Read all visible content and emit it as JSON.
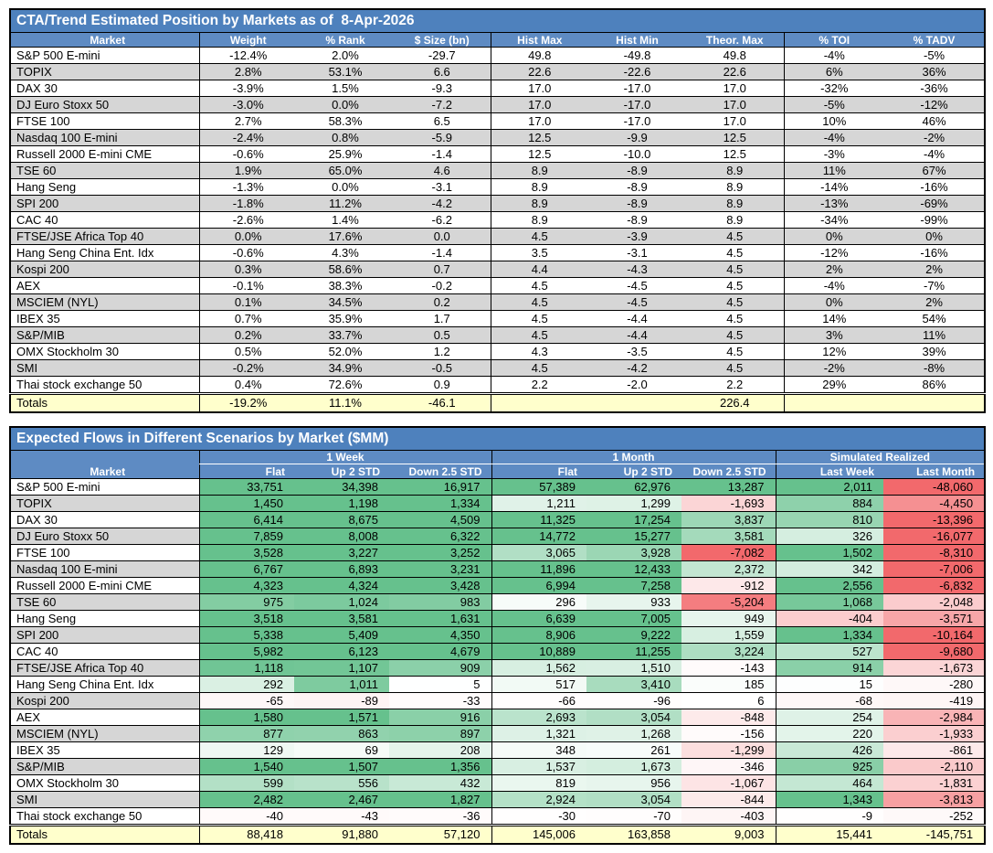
{
  "colors": {
    "title_bar": "#4E81BD",
    "header_bar": "#5E8BC3",
    "stripe_gray": "#D6D6D6",
    "totals_yellow": "#FFFFCC",
    "grid_black": "#000000",
    "heat_positive": "#66C18D",
    "heat_negative": "#F2696C"
  },
  "table1": {
    "title": "CTA/Trend Estimated Position by Markets as of  8-Apr-2026",
    "columns": [
      "Market",
      "Weight",
      "% Rank",
      "$ Size (bn)",
      "Hist Max",
      "Hist Min",
      "Theor. Max",
      "% TOI",
      "% TADV"
    ],
    "rows": [
      [
        "S&P 500 E-mini",
        "-12.4%",
        "2.0%",
        "-29.7",
        "49.8",
        "-49.8",
        "49.8",
        "-4%",
        "-5%"
      ],
      [
        "TOPIX",
        "2.8%",
        "53.1%",
        "6.6",
        "22.6",
        "-22.6",
        "22.6",
        "6%",
        "36%"
      ],
      [
        "DAX 30",
        "-3.9%",
        "1.5%",
        "-9.3",
        "17.0",
        "-17.0",
        "17.0",
        "-32%",
        "-36%"
      ],
      [
        "DJ Euro Stoxx 50",
        "-3.0%",
        "0.0%",
        "-7.2",
        "17.0",
        "-17.0",
        "17.0",
        "-5%",
        "-12%"
      ],
      [
        "FTSE 100",
        "2.7%",
        "58.3%",
        "6.5",
        "17.0",
        "-17.0",
        "17.0",
        "10%",
        "46%"
      ],
      [
        "Nasdaq 100 E-mini",
        "-2.4%",
        "0.8%",
        "-5.9",
        "12.5",
        "-9.9",
        "12.5",
        "-4%",
        "-2%"
      ],
      [
        "Russell 2000 E-mini CME",
        "-0.6%",
        "25.9%",
        "-1.4",
        "12.5",
        "-10.0",
        "12.5",
        "-3%",
        "-4%"
      ],
      [
        "TSE 60",
        "1.9%",
        "65.0%",
        "4.6",
        "8.9",
        "-8.9",
        "8.9",
        "11%",
        "67%"
      ],
      [
        "Hang Seng",
        "-1.3%",
        "0.0%",
        "-3.1",
        "8.9",
        "-8.9",
        "8.9",
        "-14%",
        "-16%"
      ],
      [
        "SPI 200",
        "-1.8%",
        "11.2%",
        "-4.2",
        "8.9",
        "-8.9",
        "8.9",
        "-13%",
        "-69%"
      ],
      [
        "CAC 40",
        "-2.6%",
        "1.4%",
        "-6.2",
        "8.9",
        "-8.9",
        "8.9",
        "-34%",
        "-99%"
      ],
      [
        "FTSE/JSE Africa Top 40",
        "0.0%",
        "17.6%",
        "0.0",
        "4.5",
        "-3.9",
        "4.5",
        "0%",
        "0%"
      ],
      [
        "Hang Seng China Ent. Idx",
        "-0.6%",
        "4.3%",
        "-1.4",
        "3.5",
        "-3.1",
        "4.5",
        "-12%",
        "-16%"
      ],
      [
        "Kospi 200",
        "0.3%",
        "58.6%",
        "0.7",
        "4.4",
        "-4.3",
        "4.5",
        "2%",
        "2%"
      ],
      [
        "AEX",
        "-0.1%",
        "38.3%",
        "-0.2",
        "4.5",
        "-4.5",
        "4.5",
        "-4%",
        "-7%"
      ],
      [
        "MSCIEM (NYL)",
        "0.1%",
        "34.5%",
        "0.2",
        "4.5",
        "-4.5",
        "4.5",
        "0%",
        "2%"
      ],
      [
        "IBEX 35",
        "0.7%",
        "35.9%",
        "1.7",
        "4.5",
        "-4.4",
        "4.5",
        "14%",
        "54%"
      ],
      [
        "S&P/MIB",
        "0.2%",
        "33.7%",
        "0.5",
        "4.5",
        "-4.4",
        "4.5",
        "3%",
        "11%"
      ],
      [
        "OMX Stockholm 30",
        "0.5%",
        "52.0%",
        "1.2",
        "4.3",
        "-3.5",
        "4.5",
        "12%",
        "39%"
      ],
      [
        "SMI",
        "-0.2%",
        "34.9%",
        "-0.5",
        "4.5",
        "-4.2",
        "4.5",
        "-2%",
        "-8%"
      ],
      [
        "Thai stock exchange 50",
        "0.4%",
        "72.6%",
        "0.9",
        "2.2",
        "-2.0",
        "2.2",
        "29%",
        "86%"
      ]
    ],
    "totals": [
      "Totals",
      "-19.2%",
      "11.1%",
      "-46.1",
      "",
      "",
      "226.4",
      "",
      ""
    ]
  },
  "table2": {
    "title": "Expected Flows in Different Scenarios by Market ($MM)",
    "groups": [
      {
        "label": "1 Week",
        "span": 3
      },
      {
        "label": "1 Month",
        "span": 3
      },
      {
        "label": "Simulated Realized",
        "span": 2
      }
    ],
    "columns": [
      "Market",
      "Flat",
      "Up 2 STD",
      "Down 2.5 STD",
      "Flat",
      "Up 2 STD",
      "Down 2.5 STD",
      "Last Week",
      "Last Month"
    ],
    "rows": [
      [
        "S&P 500 E-mini",
        33751,
        34398,
        16917,
        57389,
        62976,
        13287,
        2011,
        -48060
      ],
      [
        "TOPIX",
        1450,
        1198,
        1334,
        1211,
        1299,
        -1693,
        884,
        -4450
      ],
      [
        "DAX 30",
        6414,
        8675,
        4509,
        11325,
        17254,
        3837,
        810,
        -13396
      ],
      [
        "DJ Euro Stoxx 50",
        7859,
        8008,
        6322,
        14772,
        15277,
        3581,
        326,
        -16077
      ],
      [
        "FTSE 100",
        3528,
        3227,
        3252,
        3065,
        3928,
        -7082,
        1502,
        -8310
      ],
      [
        "Nasdaq 100 E-mini",
        6767,
        6893,
        3231,
        11896,
        12433,
        2372,
        342,
        -7006
      ],
      [
        "Russell 2000 E-mini CME",
        4323,
        4324,
        3428,
        6994,
        7258,
        -912,
        2556,
        -6832
      ],
      [
        "TSE 60",
        975,
        1024,
        983,
        296,
        933,
        -5204,
        1068,
        -2048
      ],
      [
        "Hang Seng",
        3518,
        3581,
        1631,
        6639,
        7005,
        949,
        -404,
        -3571
      ],
      [
        "SPI 200",
        5338,
        5409,
        4350,
        8906,
        9222,
        1559,
        1334,
        -10164
      ],
      [
        "CAC 40",
        5982,
        6123,
        4679,
        10889,
        11255,
        3224,
        527,
        -9680
      ],
      [
        "FTSE/JSE Africa Top 40",
        1118,
        1107,
        909,
        1562,
        1510,
        -143,
        914,
        -1673
      ],
      [
        "Hang Seng China Ent. Idx",
        292,
        1011,
        5,
        517,
        3410,
        185,
        15,
        -280
      ],
      [
        "Kospi 200",
        -65,
        -89,
        -33,
        -66,
        -96,
        6,
        -68,
        -419
      ],
      [
        "AEX",
        1580,
        1571,
        916,
        2693,
        3054,
        -848,
        254,
        -2984
      ],
      [
        "MSCIEM (NYL)",
        877,
        863,
        897,
        1321,
        1268,
        -156,
        220,
        -1933
      ],
      [
        "IBEX 35",
        129,
        69,
        208,
        348,
        261,
        -1299,
        426,
        -861
      ],
      [
        "S&P/MIB",
        1540,
        1507,
        1356,
        1537,
        1673,
        -346,
        925,
        -2110
      ],
      [
        "OMX Stockholm 30",
        599,
        556,
        432,
        819,
        956,
        -1067,
        464,
        -1831
      ],
      [
        "SMI",
        2482,
        2467,
        1827,
        2924,
        3054,
        -844,
        1343,
        -3813
      ],
      [
        "Thai stock exchange 50",
        -40,
        -43,
        -36,
        -30,
        -70,
        -403,
        -9,
        -252
      ]
    ],
    "totals": [
      "Totals",
      88418,
      91880,
      57120,
      145006,
      163858,
      9003,
      15441,
      -145751
    ],
    "heat_scales": [
      [
        1200,
        1200
      ],
      [
        1200,
        1200
      ],
      [
        1200,
        1200
      ],
      [
        6000,
        6000
      ],
      [
        6000,
        6000
      ],
      [
        6000,
        6000
      ],
      [
        1200,
        1200
      ],
      [
        6000,
        6000
      ]
    ]
  }
}
